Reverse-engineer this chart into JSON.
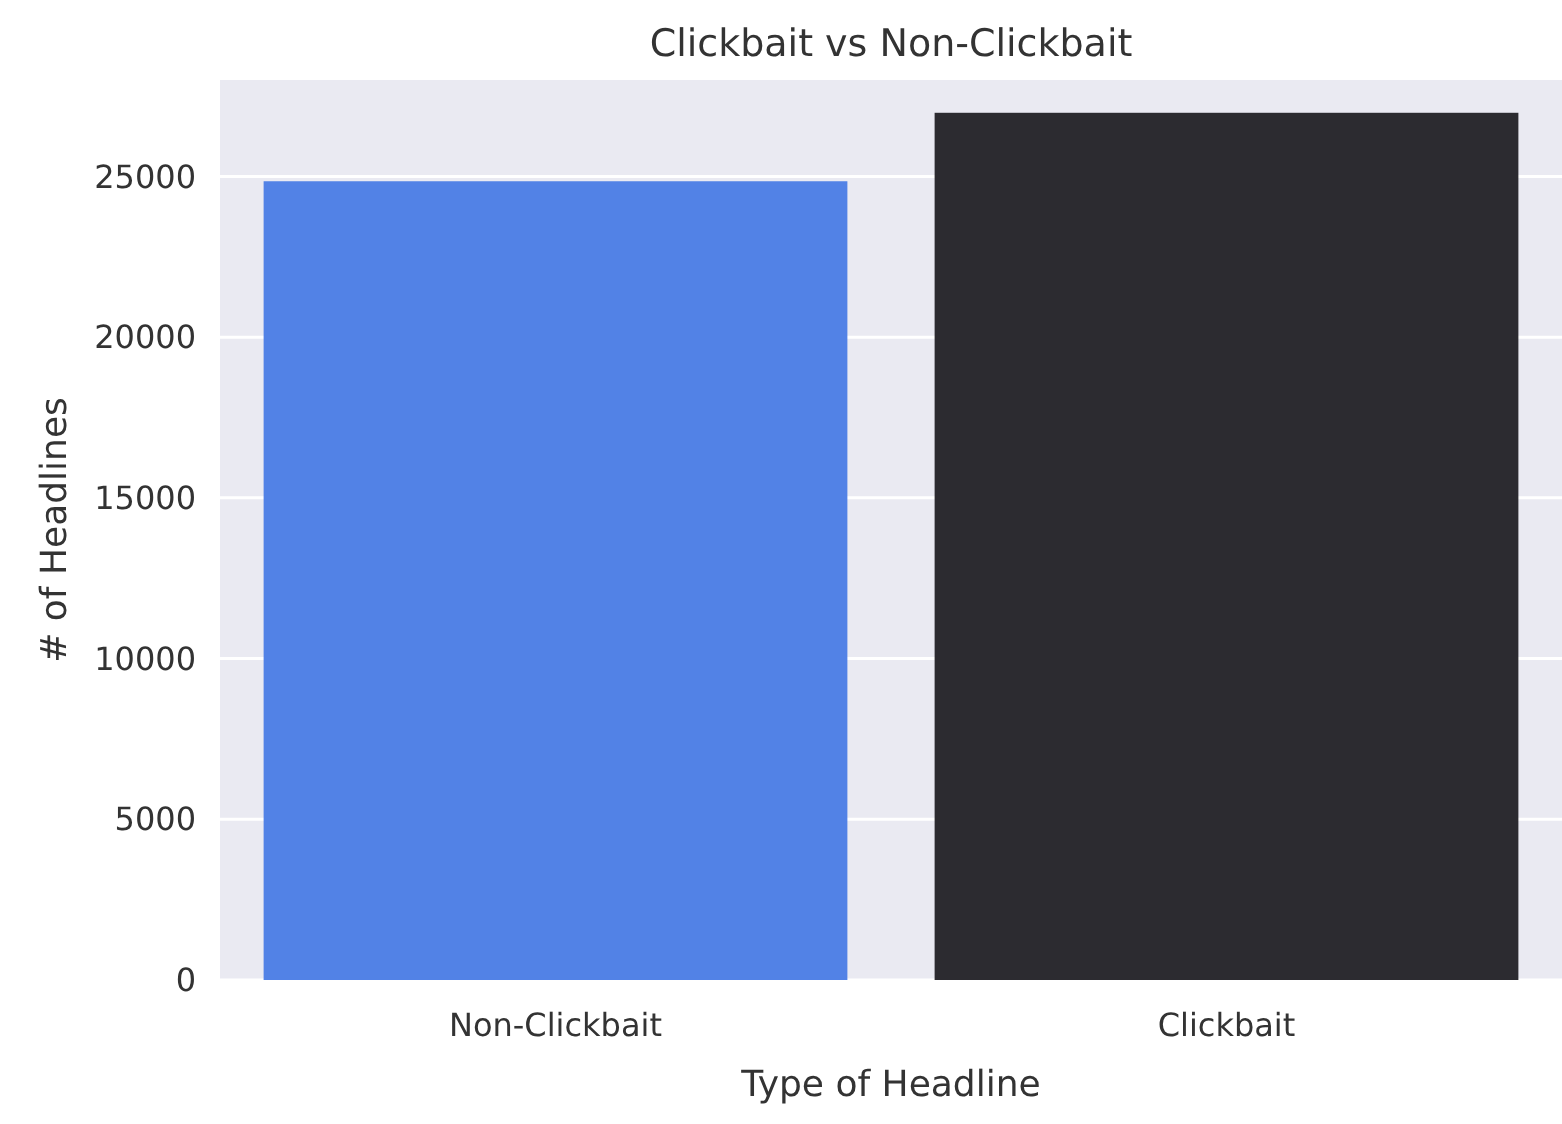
{
  "chart_data": {
    "type": "bar",
    "title": "Clickbait vs Non-Clickbait",
    "xlabel": "Type of Headline",
    "ylabel": "# of Headlines",
    "categories": [
      "Non-Clickbait",
      "Clickbait"
    ],
    "values": [
      24850,
      26980
    ],
    "colors": [
      "#5282e6",
      "#2c2b30"
    ],
    "ylim": [
      0,
      28000
    ],
    "yticks": [
      0,
      5000,
      10000,
      15000,
      20000,
      25000
    ],
    "grid": "y"
  }
}
